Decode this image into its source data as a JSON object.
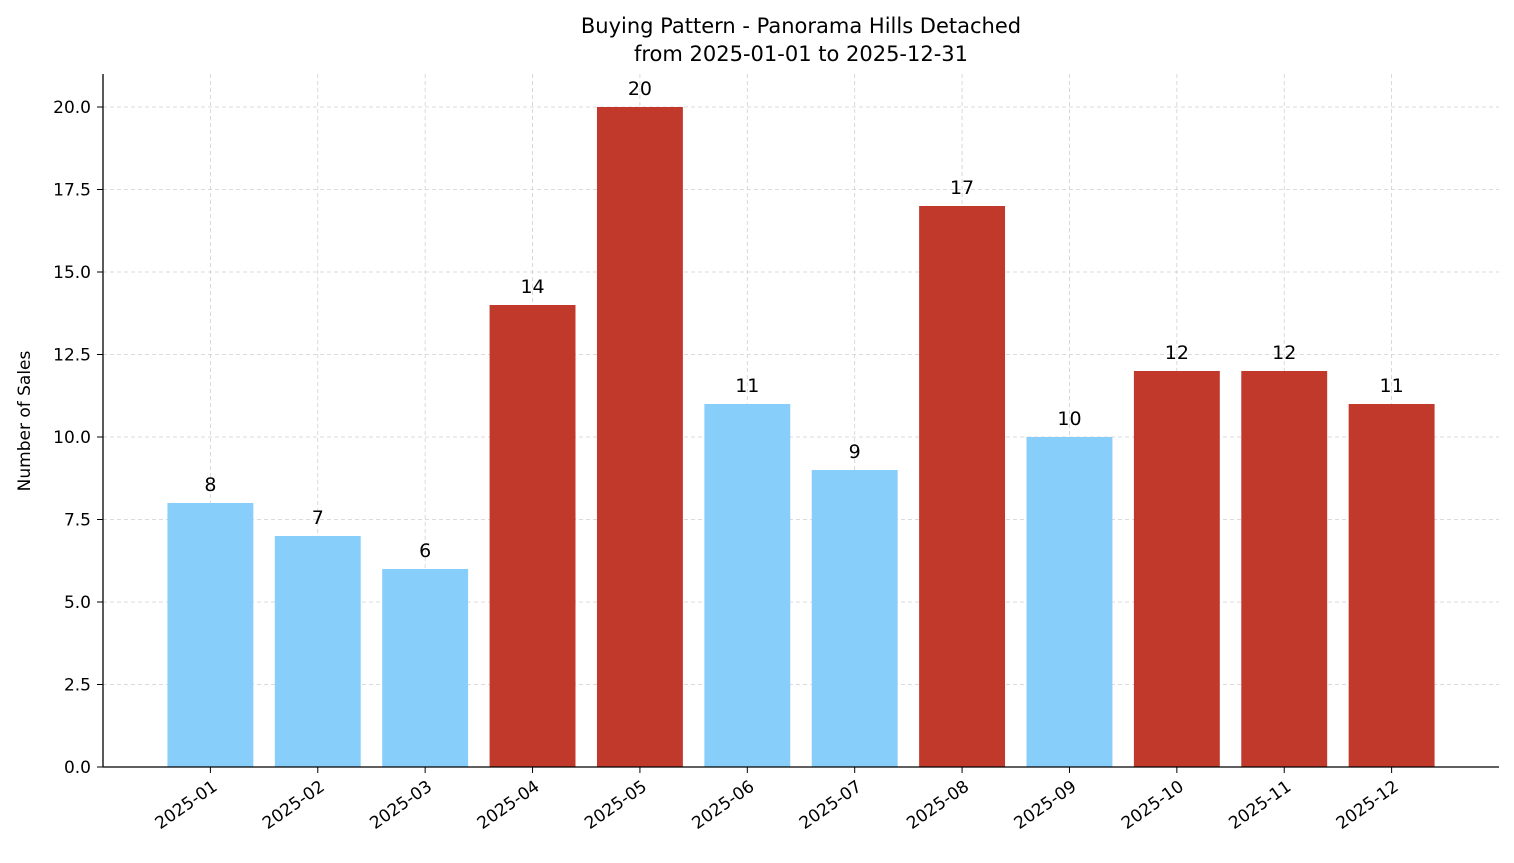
{
  "chart_data": {
    "type": "bar",
    "title": "Buying Pattern - Panorama Hills Detached",
    "subtitle": "from 2025-01-01 to 2025-12-31",
    "xlabel": "",
    "ylabel": "Number of Sales",
    "categories": [
      "2025-01",
      "2025-02",
      "2025-03",
      "2025-04",
      "2025-05",
      "2025-06",
      "2025-07",
      "2025-08",
      "2025-09",
      "2025-10",
      "2025-11",
      "2025-12"
    ],
    "values": [
      8,
      7,
      6,
      14,
      20,
      11,
      9,
      17,
      10,
      12,
      12,
      11
    ],
    "bar_colors": [
      "#87CEFA",
      "#87CEFA",
      "#87CEFA",
      "#C0392B",
      "#C0392B",
      "#87CEFA",
      "#87CEFA",
      "#C0392B",
      "#87CEFA",
      "#C0392B",
      "#C0392B",
      "#C0392B"
    ],
    "ylim": [
      0,
      21
    ],
    "yticks": [
      "0.0",
      "2.5",
      "5.0",
      "7.5",
      "10.0",
      "12.5",
      "15.0",
      "17.5",
      "20.0"
    ],
    "grid": true,
    "data_labels": true
  }
}
